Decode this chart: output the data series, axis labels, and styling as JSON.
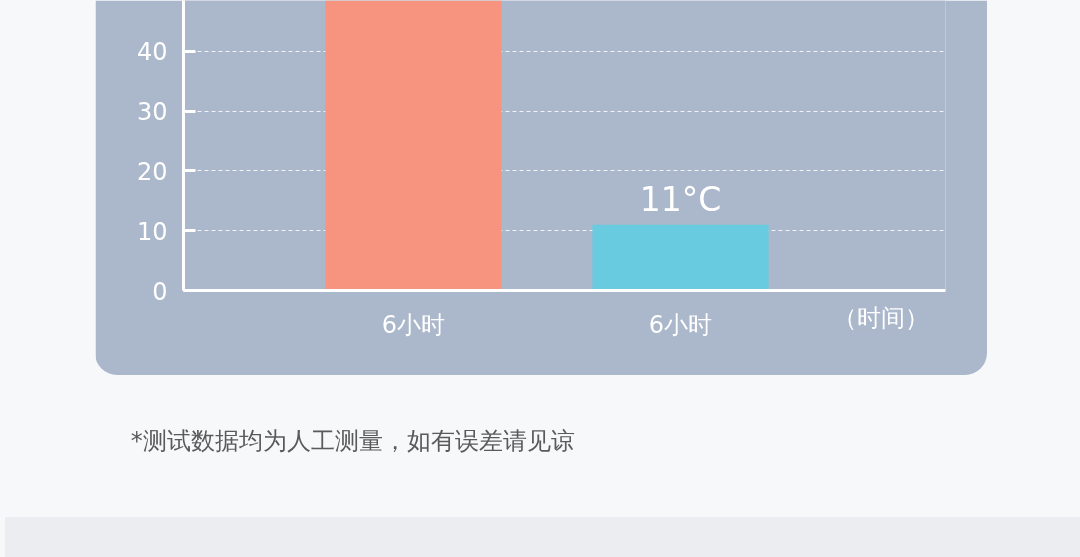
{
  "chart_data": {
    "type": "bar",
    "categories": [
      "6小时",
      "6小时"
    ],
    "values": [
      48.5,
      11
    ],
    "colors": [
      "#f69480",
      "#68cbe0"
    ],
    "value_labels": [
      null,
      "11°C"
    ],
    "xlabel": "（时间）",
    "ylim": [
      0,
      48.5
    ],
    "yticks": [
      0,
      10,
      20,
      30,
      40
    ],
    "grid": "y",
    "annotations": [
      "*测试数据均为人工测量，如有误差请见谅"
    ]
  }
}
